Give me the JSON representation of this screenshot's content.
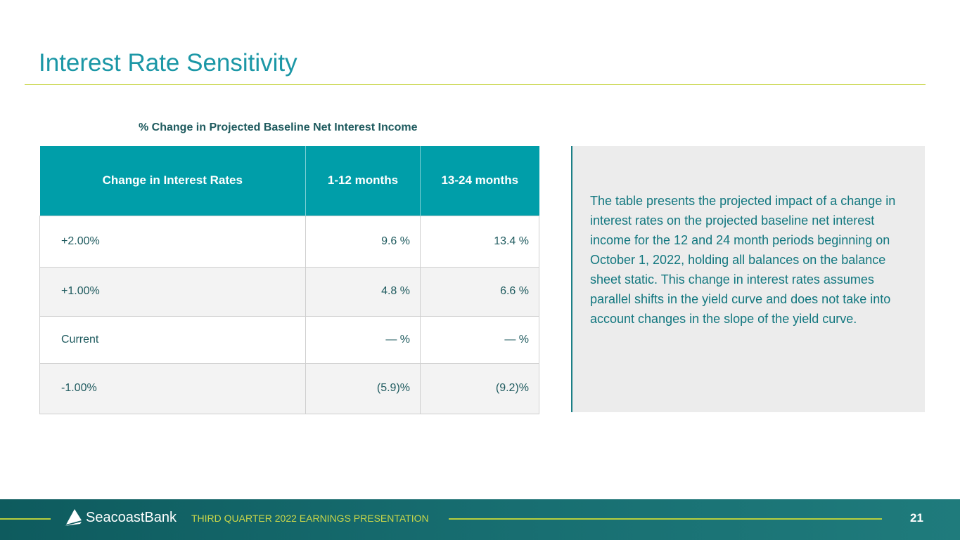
{
  "title": "Interest Rate Sensitivity",
  "caption": "% Change in Projected Baseline Net Interest Income",
  "table": {
    "headers": [
      "Change in Interest Rates",
      "1-12 months",
      "13-24 months"
    ],
    "rows": [
      [
        "+2.00%",
        "9.6 %",
        "13.4 %"
      ],
      [
        "+1.00%",
        "4.8 %",
        "6.6 %"
      ],
      [
        "Current",
        "— %",
        "— %"
      ],
      [
        "-1.00%",
        "(5.9)%",
        "(9.2)%"
      ]
    ]
  },
  "panel_text": "The table presents the projected impact of a change in interest rates on the projected baseline net interest income for the 12 and 24 month periods beginning on October 1, 2022, holding all balances on the balance sheet static. This change in interest rates assumes parallel shifts in the yield curve and does not take into account changes in the slope of the yield curve.",
  "footer": {
    "logo": "SeacoastBank",
    "presentation": "THIRD QUARTER 2022 EARNINGS PRESENTATION",
    "page": "21"
  }
}
